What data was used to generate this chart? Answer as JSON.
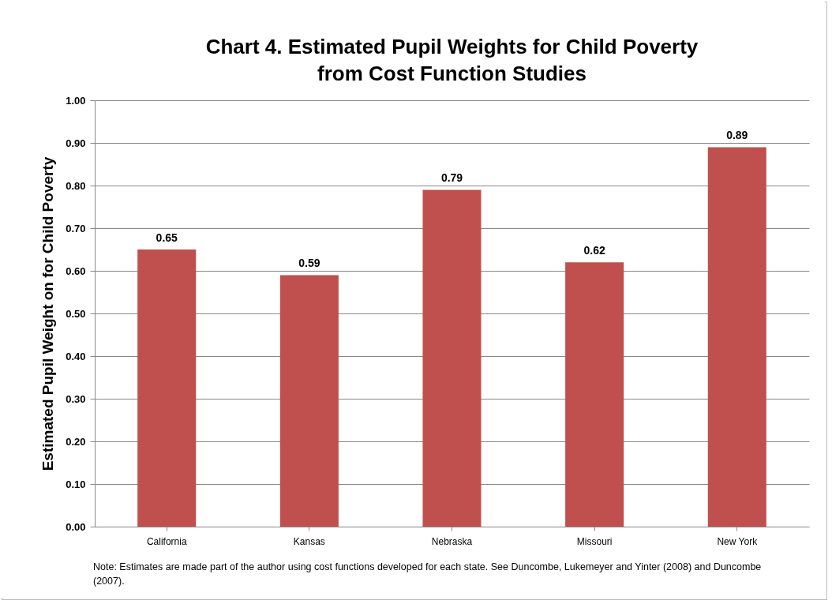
{
  "chart_data": {
    "type": "bar",
    "title": "Chart 4. Estimated Pupil Weights for Child Poverty from Cost Function Studies",
    "ylabel": "Estimated Pupil Weight on for Child Poverty",
    "categories": [
      "California",
      "Kansas",
      "Nebraska",
      "Missouri",
      "New York"
    ],
    "values": [
      0.65,
      0.59,
      0.79,
      0.62,
      0.89
    ],
    "color": "#c0504d",
    "ylim": [
      0,
      1
    ],
    "yticks": [
      {
        "value": 0,
        "label": "0.00"
      },
      {
        "value": 0.1,
        "label": "0.10"
      },
      {
        "value": 0.2,
        "label": "0.20"
      },
      {
        "value": 0.3,
        "label": "0.30"
      },
      {
        "value": 0.4,
        "label": "0.40"
      },
      {
        "value": 0.5,
        "label": "0.50"
      },
      {
        "value": 0.6,
        "label": "0.60"
      },
      {
        "value": 0.7,
        "label": "0.70"
      },
      {
        "value": 0.8,
        "label": "0.80"
      },
      {
        "value": 0.9,
        "label": "0.90"
      },
      {
        "value": 1,
        "label": "1.00"
      }
    ],
    "grid": "y",
    "data_labels": true,
    "annotations": [
      "Note: Estimates are made part of the author using cost functions developed for each state.  See Duncombe, Lukemeyer and Yinter (2008) and Duncombe (2007)."
    ]
  }
}
